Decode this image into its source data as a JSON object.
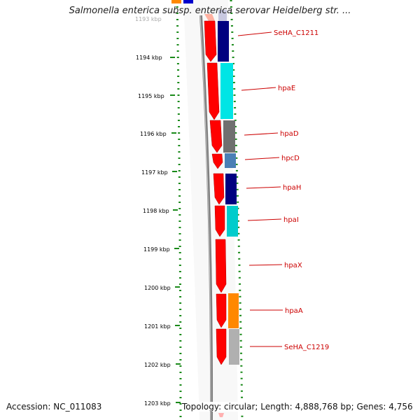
{
  "title": "Salmonella enterica subsp. enterica serovar Heidelberg str. ...",
  "footer": {
    "accession": "Accession: NC_011083",
    "summary": "Topology: circular; Length: 4,888,768 bp; Genes: 4,756"
  },
  "ruler": {
    "ticks": [
      {
        "label": "1194 kbp"
      },
      {
        "label": "1195 kbp"
      },
      {
        "label": "1196 kbp"
      },
      {
        "label": "1197 kbp"
      },
      {
        "label": "1198 kbp"
      },
      {
        "label": "1199 kbp"
      },
      {
        "label": "1200 kbp"
      },
      {
        "label": "1201 kbp"
      },
      {
        "label": "1202 kbp"
      },
      {
        "label": "1203 kbp"
      }
    ]
  },
  "genes": [
    {
      "name": "SeHA_C1211",
      "color": "#000080"
    },
    {
      "name": "hpaE",
      "color": "#00e5e5"
    },
    {
      "name": "hpaD",
      "color": "#707070"
    },
    {
      "name": "hpcD",
      "color": "#4a7fb5"
    },
    {
      "name": "hpaH",
      "color": "#000080"
    },
    {
      "name": "hpaI",
      "color": "#00cccc"
    },
    {
      "name": "hpaX",
      "color": "#ffffff"
    },
    {
      "name": "hpaA",
      "color": "#ff8800"
    },
    {
      "name": "SeHA_C1219",
      "color": "#b0b0b0"
    }
  ],
  "colors": {
    "cds": "#ff0000",
    "backbone": "#808080",
    "label": "#cc0000",
    "dots": "#1a8a1a"
  }
}
